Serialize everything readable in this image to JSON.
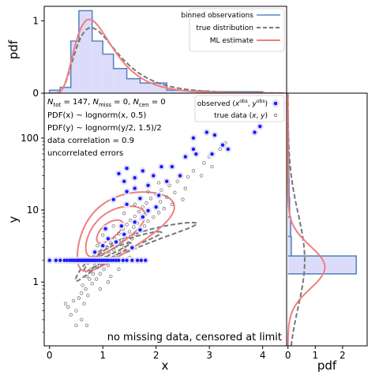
{
  "chart_data": [
    {
      "panel": "main",
      "type": "scatter",
      "xlabel": "x",
      "ylabel": "y",
      "xlim": [
        -0.1,
        4.45
      ],
      "ylim": [
        0.13,
        420
      ],
      "yscale": "log",
      "x_ticks": [
        "0",
        "1",
        "2",
        "3",
        "4"
      ],
      "y_ticks": [
        "1",
        "10",
        "100"
      ],
      "info_lines": [
        "N_tot = 147, N_miss = 0, N_cen = 0",
        "PDF(x) ~ lognorm(x, 0.5)",
        "PDF(y) ~ lognorm(y/2, 1.5)/2",
        "data correlation = 0.9",
        "uncorrelated errors"
      ],
      "annotation": "no missing data, censored at limit",
      "legend": {
        "location": "top-right",
        "entries": [
          "observed (x^obs, y^obs)",
          "true data (x, y)"
        ]
      },
      "censoring_limit_y": 2.0,
      "observed_points": [
        [
          0.0,
          2.0
        ],
        [
          0.12,
          2.0
        ],
        [
          0.2,
          2.0
        ],
        [
          0.28,
          2.0
        ],
        [
          0.33,
          2.0
        ],
        [
          0.38,
          2.0
        ],
        [
          0.42,
          2.0
        ],
        [
          0.46,
          2.0
        ],
        [
          0.5,
          2.0
        ],
        [
          0.53,
          2.0
        ],
        [
          0.56,
          2.0
        ],
        [
          0.59,
          2.0
        ],
        [
          0.62,
          2.0
        ],
        [
          0.65,
          2.0
        ],
        [
          0.68,
          2.0
        ],
        [
          0.71,
          2.0
        ],
        [
          0.74,
          2.0
        ],
        [
          0.77,
          2.0
        ],
        [
          0.8,
          2.0
        ],
        [
          0.83,
          2.0
        ],
        [
          0.86,
          2.0
        ],
        [
          0.9,
          2.0
        ],
        [
          0.94,
          2.0
        ],
        [
          0.98,
          2.0
        ],
        [
          1.02,
          2.0
        ],
        [
          1.06,
          2.0
        ],
        [
          1.1,
          2.0
        ],
        [
          1.15,
          2.0
        ],
        [
          1.2,
          2.0
        ],
        [
          1.25,
          2.0
        ],
        [
          1.3,
          2.0
        ],
        [
          1.38,
          2.0
        ],
        [
          1.45,
          2.0
        ],
        [
          1.55,
          2.0
        ],
        [
          1.65,
          2.0
        ],
        [
          1.72,
          2.0
        ],
        [
          1.8,
          2.0
        ],
        [
          1.0,
          3.2
        ],
        [
          1.1,
          4.0
        ],
        [
          1.25,
          3.6
        ],
        [
          1.4,
          4.6
        ],
        [
          1.55,
          3.0
        ],
        [
          0.85,
          2.6
        ],
        [
          1.7,
          5.3
        ],
        [
          1.05,
          5.5
        ],
        [
          1.35,
          6.0
        ],
        [
          1.6,
          6.8
        ],
        [
          1.75,
          8.0
        ],
        [
          1.85,
          9.8
        ],
        [
          2.0,
          11.0
        ],
        [
          1.45,
          12.0
        ],
        [
          1.2,
          14.0
        ],
        [
          1.7,
          14.5
        ],
        [
          2.05,
          16.0
        ],
        [
          1.45,
          18.0
        ],
        [
          1.6,
          20.0
        ],
        [
          1.85,
          22.0
        ],
        [
          2.2,
          25.0
        ],
        [
          1.4,
          25.0
        ],
        [
          1.6,
          28.0
        ],
        [
          1.95,
          30.0
        ],
        [
          2.45,
          30.0
        ],
        [
          1.45,
          38.0
        ],
        [
          1.75,
          35.0
        ],
        [
          2.1,
          40.0
        ],
        [
          1.3,
          32.0
        ],
        [
          2.3,
          40.0
        ],
        [
          2.55,
          55.0
        ],
        [
          2.7,
          70.0
        ],
        [
          3.05,
          60.0
        ],
        [
          3.25,
          80.0
        ],
        [
          3.35,
          70.0
        ],
        [
          2.7,
          100.0
        ],
        [
          2.75,
          60.0
        ],
        [
          3.1,
          110.0
        ],
        [
          3.95,
          145.0
        ],
        [
          3.85,
          120.0
        ],
        [
          2.95,
          120.0
        ]
      ],
      "true_points": [
        [
          0.3,
          0.5
        ],
        [
          0.35,
          0.45
        ],
        [
          0.4,
          0.35
        ],
        [
          0.45,
          0.55
        ],
        [
          0.5,
          0.4
        ],
        [
          0.55,
          0.6
        ],
        [
          0.6,
          0.7
        ],
        [
          0.62,
          0.9
        ],
        [
          0.65,
          0.5
        ],
        [
          0.68,
          0.8
        ],
        [
          0.7,
          1.2
        ],
        [
          0.72,
          0.65
        ],
        [
          0.75,
          1.1
        ],
        [
          0.78,
          1.5
        ],
        [
          0.8,
          0.95
        ],
        [
          0.82,
          1.3
        ],
        [
          0.85,
          1.7
        ],
        [
          0.88,
          1.1
        ],
        [
          0.9,
          1.6
        ],
        [
          0.92,
          2.3
        ],
        [
          0.95,
          1.3
        ],
        [
          0.98,
          1.8
        ],
        [
          1.0,
          2.6
        ],
        [
          1.02,
          1.5
        ],
        [
          1.05,
          2.2
        ],
        [
          1.08,
          3.0
        ],
        [
          1.1,
          1.7
        ],
        [
          1.12,
          2.5
        ],
        [
          1.15,
          3.5
        ],
        [
          1.18,
          2.0
        ],
        [
          1.2,
          2.8
        ],
        [
          1.22,
          4.0
        ],
        [
          1.25,
          2.3
        ],
        [
          1.28,
          3.3
        ],
        [
          1.3,
          4.7
        ],
        [
          1.32,
          2.6
        ],
        [
          1.35,
          3.8
        ],
        [
          1.38,
          5.5
        ],
        [
          1.4,
          3.0
        ],
        [
          1.42,
          4.4
        ],
        [
          1.45,
          6.3
        ],
        [
          1.48,
          3.5
        ],
        [
          1.5,
          5.0
        ],
        [
          1.52,
          7.2
        ],
        [
          1.55,
          4.0
        ],
        [
          1.58,
          5.8
        ],
        [
          1.6,
          8.2
        ],
        [
          1.62,
          4.6
        ],
        [
          1.65,
          6.6
        ],
        [
          1.68,
          9.5
        ],
        [
          1.7,
          5.3
        ],
        [
          1.72,
          7.6
        ],
        [
          1.75,
          11.0
        ],
        [
          1.78,
          6.0
        ],
        [
          1.8,
          8.8
        ],
        [
          1.82,
          12.5
        ],
        [
          1.85,
          7.0
        ],
        [
          1.88,
          10.0
        ],
        [
          1.9,
          14.5
        ],
        [
          1.95,
          8.0
        ],
        [
          1.98,
          11.5
        ],
        [
          2.0,
          16.5
        ],
        [
          2.05,
          9.2
        ],
        [
          2.08,
          13.0
        ],
        [
          2.1,
          19.0
        ],
        [
          2.15,
          10.5
        ],
        [
          2.2,
          15.0
        ],
        [
          2.25,
          22.0
        ],
        [
          2.3,
          12.0
        ],
        [
          2.35,
          17.5
        ],
        [
          2.4,
          25.0
        ],
        [
          2.5,
          14.0
        ],
        [
          2.55,
          20.0
        ],
        [
          2.6,
          29.0
        ],
        [
          0.6,
          0.3
        ],
        [
          0.7,
          0.25
        ],
        [
          0.5,
          0.25
        ],
        [
          1.1,
          1.0
        ],
        [
          1.3,
          1.5
        ],
        [
          1.5,
          2.2
        ],
        [
          0.95,
          0.8
        ],
        [
          1.15,
          1.2
        ],
        [
          2.7,
          35.0
        ],
        [
          2.9,
          45.0
        ],
        [
          3.0,
          55.0
        ],
        [
          3.2,
          70.0
        ],
        [
          3.3,
          85.0
        ],
        [
          2.85,
          30.0
        ],
        [
          3.05,
          40.0
        ],
        [
          1.4,
          9.0
        ],
        [
          1.6,
          12.0
        ],
        [
          1.2,
          6.0
        ],
        [
          1.0,
          4.5
        ],
        [
          0.9,
          3.2
        ],
        [
          1.85,
          18.0
        ],
        [
          2.05,
          24.0
        ]
      ],
      "series": [
        {
          "name": "true distribution",
          "color": "#777777",
          "style": "dashed"
        },
        {
          "name": "ML estimate",
          "color": "#ee7f7f",
          "style": "solid"
        }
      ]
    },
    {
      "panel": "top-marginal",
      "type": "bar",
      "xlabel": "",
      "ylabel": "pdf",
      "ylim": [
        0,
        1.2
      ],
      "y_ticks": [
        "0",
        "1"
      ],
      "legend": {
        "location": "top-right",
        "entries": [
          "binned observations",
          "true distribution",
          "ML estimate"
        ]
      },
      "bin_edges": [
        0,
        0.2,
        0.4,
        0.55,
        0.8,
        1.0,
        1.2,
        1.45,
        1.7,
        2.2,
        2.6,
        3.0,
        4.0
      ],
      "densities": [
        0.04,
        0.08,
        0.72,
        1.14,
        0.72,
        0.54,
        0.34,
        0.2,
        0.14,
        0.04,
        0.03,
        0.02
      ]
    },
    {
      "panel": "right-marginal",
      "type": "bar",
      "orientation": "horizontal",
      "xlabel": "pdf",
      "ylabel": "",
      "xlim": [
        -0.05,
        2.9
      ],
      "x_ticks": [
        "0",
        "1",
        "2"
      ],
      "bins": [
        {
          "y_low": 1.3,
          "y_high": 2.3,
          "density": 2.5
        },
        {
          "y_low": 2.3,
          "y_high": 4.3,
          "density": 0.12
        },
        {
          "y_low": 4.3,
          "y_high": 8.0,
          "density": 0.1
        },
        {
          "y_low": 8.0,
          "y_high": 15.0,
          "density": 0.06
        },
        {
          "y_low": 15.0,
          "y_high": 28.0,
          "density": 0.04
        },
        {
          "y_low": 28.0,
          "y_high": 55.0,
          "density": 0.03
        },
        {
          "y_low": 55.0,
          "y_high": 110.0,
          "density": 0.02
        },
        {
          "y_low": 110.0,
          "y_high": 210.0,
          "density": 0.01
        }
      ]
    }
  ],
  "colors": {
    "observed_marker": "#1a1aff",
    "true_marker": "#666666",
    "hist_fill": "#dcdcfa",
    "hist_edge": "#5a86bd",
    "true_curve": "#777777",
    "ml_curve": "#ee7f7f"
  }
}
